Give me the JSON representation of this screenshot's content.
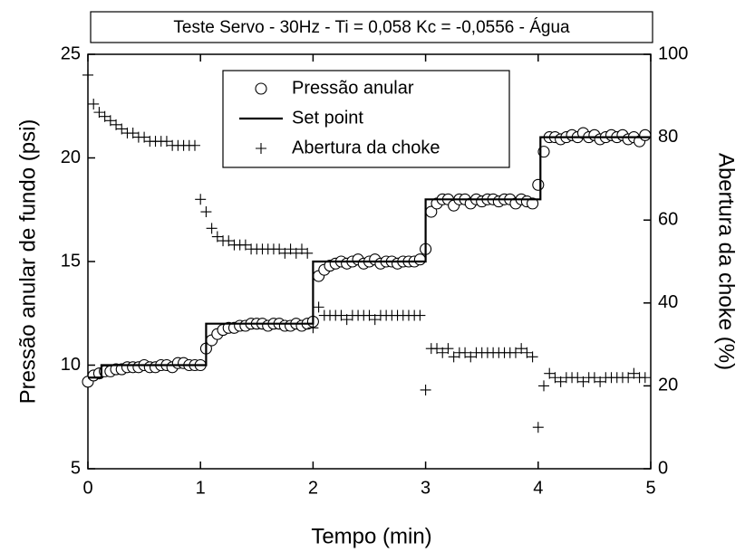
{
  "chart_data": {
    "type": "scatter",
    "title": "Teste Servo - 30Hz - Ti = 0,058 Kc = -0,0556 - Água",
    "x_label": "Tempo (min)",
    "y_label": "Pressão anular de fundo (psi)",
    "y2_label": "Abertura da choke (%)",
    "xlim": [
      0,
      5
    ],
    "xticks": [
      0,
      1,
      2,
      3,
      4,
      5
    ],
    "ylim": [
      5,
      25
    ],
    "yticks": [
      5,
      10,
      15,
      20,
      25
    ],
    "y2lim": [
      0,
      100
    ],
    "y2ticks": [
      0,
      20,
      40,
      60,
      80,
      100
    ],
    "legend": "top-center",
    "series": [
      {
        "name": "Pressão anular",
        "marker": "circle",
        "color": "#000000",
        "x": [
          0,
          0.05,
          0.1,
          0.15,
          0.2,
          0.25,
          0.3,
          0.35,
          0.4,
          0.45,
          0.5,
          0.55,
          0.6,
          0.65,
          0.7,
          0.75,
          0.8,
          0.85,
          0.9,
          0.95,
          1,
          1.05,
          1.1,
          1.15,
          1.2,
          1.25,
          1.3,
          1.35,
          1.4,
          1.45,
          1.5,
          1.55,
          1.6,
          1.65,
          1.7,
          1.75,
          1.8,
          1.85,
          1.9,
          1.95,
          2,
          2.05,
          2.1,
          2.15,
          2.2,
          2.25,
          2.3,
          2.35,
          2.4,
          2.45,
          2.5,
          2.55,
          2.6,
          2.65,
          2.7,
          2.75,
          2.8,
          2.85,
          2.9,
          2.95,
          3,
          3.05,
          3.1,
          3.15,
          3.2,
          3.25,
          3.3,
          3.35,
          3.4,
          3.45,
          3.5,
          3.55,
          3.6,
          3.65,
          3.7,
          3.75,
          3.8,
          3.85,
          3.9,
          3.95,
          4,
          4.05,
          4.1,
          4.15,
          4.2,
          4.25,
          4.3,
          4.35,
          4.4,
          4.45,
          4.5,
          4.55,
          4.6,
          4.65,
          4.7,
          4.75,
          4.8,
          4.85,
          4.9,
          4.95
        ],
        "values": [
          9.2,
          9.5,
          9.6,
          9.7,
          9.7,
          9.8,
          9.8,
          9.9,
          9.9,
          9.9,
          10.0,
          9.9,
          9.9,
          10.0,
          10.0,
          9.9,
          10.1,
          10.1,
          10.0,
          10.0,
          10.0,
          10.8,
          11.2,
          11.5,
          11.7,
          11.8,
          11.8,
          11.9,
          11.9,
          12.0,
          12.0,
          12.0,
          11.9,
          12.0,
          12.0,
          11.9,
          11.9,
          12.0,
          11.9,
          12.0,
          12.1,
          14.3,
          14.6,
          14.8,
          14.9,
          15.0,
          14.9,
          15.0,
          15.1,
          14.9,
          15.0,
          15.1,
          14.9,
          15.0,
          15.0,
          14.9,
          15.0,
          15.0,
          15.0,
          15.1,
          15.6,
          17.4,
          17.8,
          18.0,
          18.0,
          17.7,
          18.0,
          18.0,
          17.8,
          18.0,
          17.9,
          18.0,
          18.0,
          17.9,
          18.0,
          18.0,
          17.8,
          18.0,
          17.9,
          17.8,
          18.7,
          20.3,
          21.0,
          21.0,
          20.9,
          21.0,
          21.1,
          21.0,
          21.2,
          21.0,
          21.1,
          20.9,
          21.0,
          21.1,
          21.0,
          21.1,
          20.9,
          21.0,
          20.8,
          21.1
        ]
      },
      {
        "name": "Set point",
        "marker": "line",
        "color": "#000000",
        "x": [
          0,
          0.12,
          0.12,
          1.05,
          1.05,
          2.0,
          2.0,
          3.0,
          3.0,
          4.02,
          4.02,
          5.0
        ],
        "values": [
          9.4,
          9.4,
          10,
          10,
          12,
          12,
          15,
          15,
          18,
          18,
          21,
          21
        ]
      },
      {
        "name": "Abertura da choke",
        "marker": "plus",
        "color": "#000000",
        "axis": "y2",
        "x": [
          0,
          0.05,
          0.1,
          0.15,
          0.2,
          0.25,
          0.3,
          0.35,
          0.4,
          0.45,
          0.5,
          0.55,
          0.6,
          0.65,
          0.7,
          0.75,
          0.8,
          0.85,
          0.9,
          0.95,
          1,
          1.05,
          1.1,
          1.15,
          1.2,
          1.25,
          1.3,
          1.35,
          1.4,
          1.45,
          1.5,
          1.55,
          1.6,
          1.65,
          1.7,
          1.75,
          1.8,
          1.85,
          1.9,
          1.95,
          2,
          2.05,
          2.1,
          2.15,
          2.2,
          2.25,
          2.3,
          2.35,
          2.4,
          2.45,
          2.5,
          2.55,
          2.6,
          2.65,
          2.7,
          2.75,
          2.8,
          2.85,
          2.9,
          2.95,
          3,
          3.05,
          3.1,
          3.15,
          3.2,
          3.25,
          3.3,
          3.35,
          3.4,
          3.45,
          3.5,
          3.55,
          3.6,
          3.65,
          3.7,
          3.75,
          3.8,
          3.85,
          3.9,
          3.95,
          4,
          4.05,
          4.1,
          4.15,
          4.2,
          4.25,
          4.3,
          4.35,
          4.4,
          4.45,
          4.5,
          4.55,
          4.6,
          4.65,
          4.7,
          4.75,
          4.8,
          4.85,
          4.9,
          4.95
        ],
        "values": [
          95,
          88,
          86,
          85,
          84,
          83,
          82,
          81,
          81,
          80,
          80,
          79,
          79,
          79,
          79,
          78,
          78,
          78,
          78,
          78,
          65,
          62,
          58,
          56,
          55,
          55,
          54,
          54,
          54,
          53,
          53,
          53,
          53,
          53,
          53,
          52,
          53,
          52,
          53,
          52,
          34,
          39,
          37,
          37,
          37,
          37,
          36,
          37,
          37,
          37,
          37,
          36,
          37,
          37,
          37,
          37,
          37,
          37,
          37,
          37,
          19,
          29,
          29,
          28,
          29,
          27,
          28,
          28,
          27,
          28,
          28,
          28,
          28,
          28,
          28,
          28,
          28,
          29,
          28,
          27,
          10,
          20,
          23,
          22,
          21,
          22,
          22,
          22,
          21,
          22,
          22,
          21,
          22,
          22,
          22,
          22,
          22,
          23,
          22,
          22
        ]
      }
    ]
  }
}
